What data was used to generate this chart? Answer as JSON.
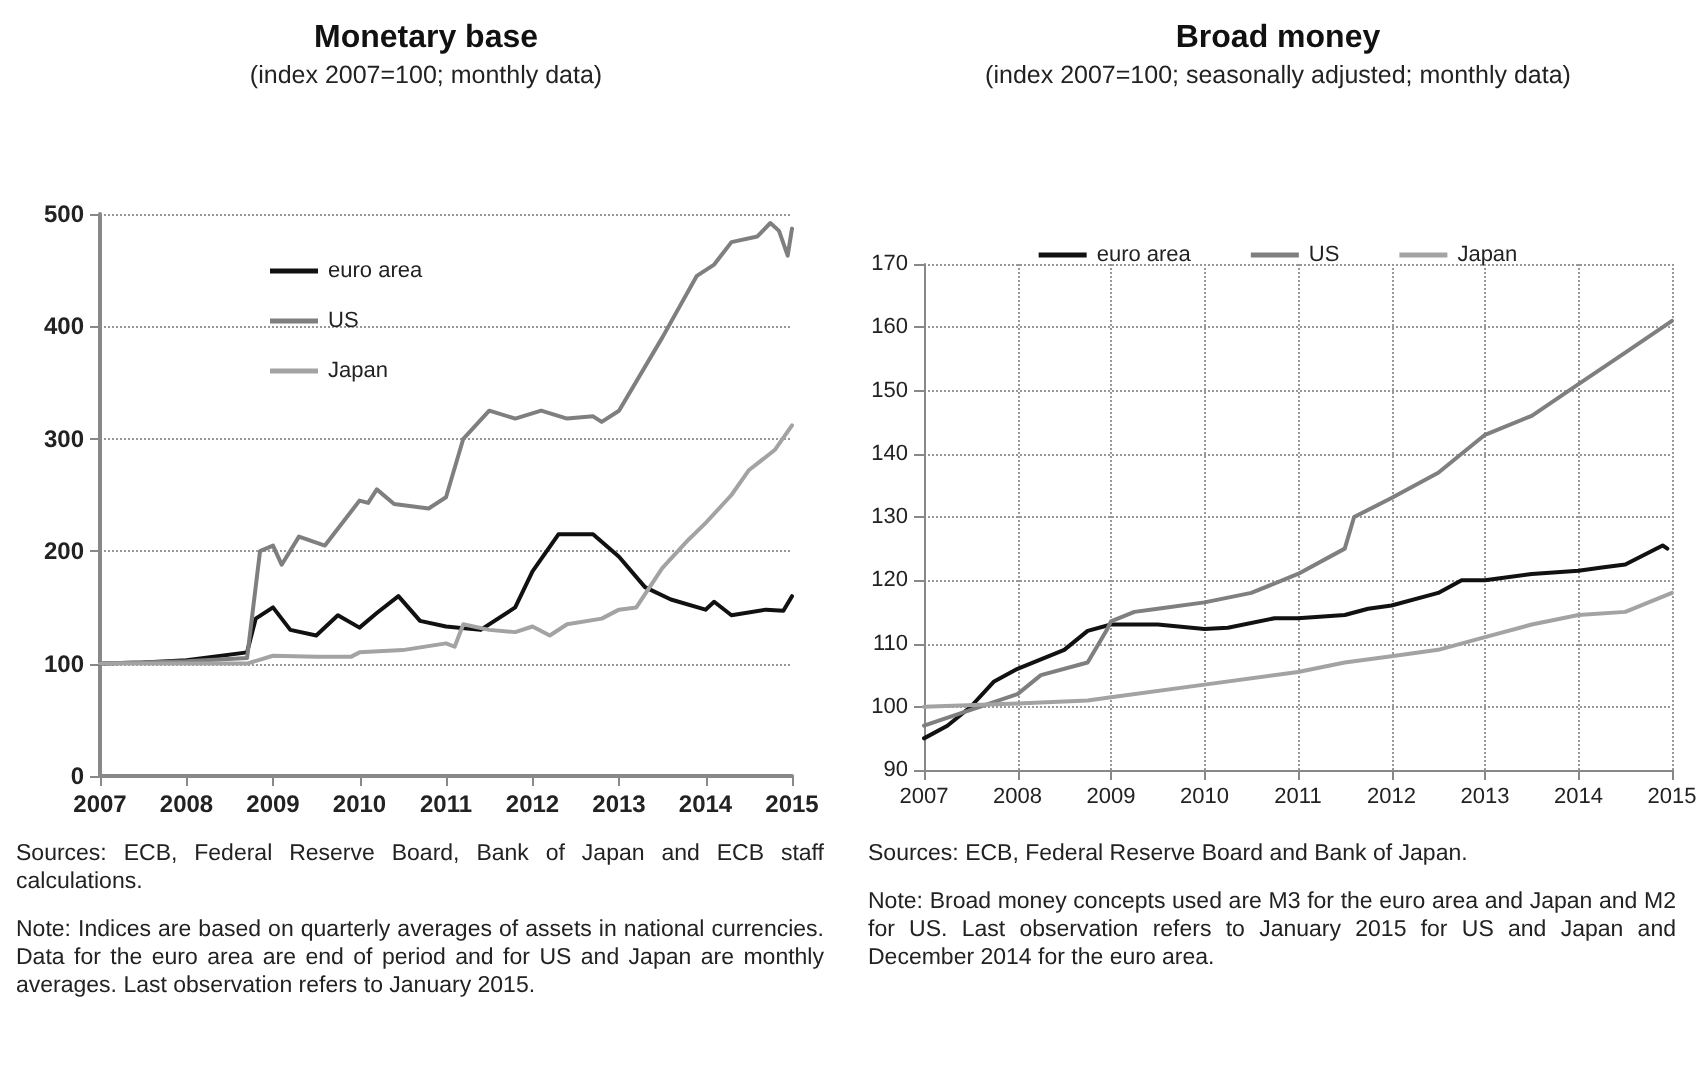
{
  "chart_data": [
    {
      "type": "line",
      "title": "Monetary base",
      "subtitle": "(index 2007=100; monthly data)",
      "xlim": [
        2007,
        2015
      ],
      "xticks": [
        2007,
        2008,
        2009,
        2010,
        2011,
        2012,
        2013,
        2014,
        2015
      ],
      "ylim": [
        0,
        500
      ],
      "yticks": [
        0,
        100,
        200,
        300,
        400,
        500
      ],
      "grid": "y",
      "legend": "top left",
      "marker": "none",
      "line_style": "solid",
      "series": [
        {
          "name": "euro area",
          "color": "#111111",
          "x": [
            2007,
            2007.5,
            2008,
            2008.7,
            2008.8,
            2009,
            2009.2,
            2009.5,
            2009.75,
            2010,
            2010.2,
            2010.45,
            2010.7,
            2011,
            2011.4,
            2011.8,
            2012,
            2012.3,
            2012.7,
            2013,
            2013.3,
            2013.6,
            2014,
            2014.1,
            2014.3,
            2014.7,
            2014.9,
            2015
          ],
          "values": [
            100,
            101,
            103,
            110,
            140,
            150,
            130,
            125,
            143,
            132,
            145,
            160,
            138,
            133,
            130,
            150,
            182,
            215,
            215,
            195,
            168,
            157,
            148,
            155,
            143,
            148,
            147,
            160
          ]
        },
        {
          "name": "US",
          "color": "#7f7f7f",
          "x": [
            2007,
            2008,
            2008.7,
            2008.85,
            2009,
            2009.1,
            2009.3,
            2009.6,
            2010,
            2010.1,
            2010.2,
            2010.4,
            2010.8,
            2011,
            2011.2,
            2011.5,
            2011.8,
            2012.1,
            2012.4,
            2012.7,
            2012.8,
            2013,
            2013.5,
            2013.9,
            2014.1,
            2014.3,
            2014.6,
            2014.75,
            2014.85,
            2014.95,
            2015
          ],
          "values": [
            100,
            102,
            105,
            200,
            205,
            188,
            213,
            205,
            245,
            243,
            255,
            242,
            238,
            248,
            300,
            325,
            318,
            325,
            318,
            320,
            315,
            325,
            390,
            445,
            455,
            475,
            480,
            492,
            485,
            463,
            487
          ]
        },
        {
          "name": "Japan",
          "color": "#a3a3a3",
          "x": [
            2007,
            2008,
            2008.7,
            2009,
            2009.5,
            2009.9,
            2010,
            2010.5,
            2011,
            2011.1,
            2011.2,
            2011.5,
            2011.8,
            2012,
            2012.2,
            2012.4,
            2012.8,
            2013,
            2013.2,
            2013.5,
            2013.8,
            2014,
            2014.3,
            2014.5,
            2014.8,
            2015
          ],
          "values": [
            100,
            100,
            100,
            107,
            106,
            106,
            110,
            112,
            118,
            115,
            135,
            130,
            128,
            133,
            125,
            135,
            140,
            148,
            150,
            185,
            210,
            225,
            250,
            272,
            290,
            312
          ]
        }
      ],
      "annotations": [
        "Sources: ECB, Federal Reserve Board, Bank of Japan and ECB staff calculations.",
        "Note: Indices are based on quarterly averages of assets in national currencies. Data for the euro area are end of period and for US and Japan are monthly averages. Last observation refers to January 2015."
      ]
    },
    {
      "type": "line",
      "title": "Broad money",
      "subtitle": "(index 2007=100; seasonally adjusted; monthly data)",
      "xlim": [
        2007,
        2015
      ],
      "xticks": [
        2007,
        2008,
        2009,
        2010,
        2011,
        2012,
        2013,
        2014,
        2015
      ],
      "ylim": [
        90,
        170
      ],
      "yticks": [
        90,
        100,
        110,
        120,
        130,
        140,
        150,
        160,
        170
      ],
      "grid": true,
      "legend": "top",
      "marker": "none",
      "line_style": "solid",
      "series": [
        {
          "name": "euro area",
          "color": "#111111",
          "x": [
            2007,
            2007.25,
            2007.5,
            2007.75,
            2008,
            2008.5,
            2008.75,
            2009,
            2009.5,
            2010,
            2010.25,
            2010.75,
            2011,
            2011.5,
            2011.75,
            2012,
            2012.5,
            2012.75,
            2013,
            2013.5,
            2014,
            2014.25,
            2014.5,
            2014.9,
            2014.95
          ],
          "values": [
            95,
            97,
            100,
            104,
            106,
            109,
            112,
            113,
            113,
            112.3,
            112.5,
            114,
            114,
            114.5,
            115.5,
            116,
            118,
            120,
            120,
            121,
            121.5,
            122,
            122.5,
            125.5,
            125
          ]
        },
        {
          "name": "US",
          "color": "#7f7f7f",
          "x": [
            2007,
            2007.5,
            2008,
            2008.25,
            2008.75,
            2008.95,
            2009,
            2009.25,
            2009.5,
            2010,
            2010.5,
            2011,
            2011.5,
            2011.6,
            2012,
            2012.5,
            2013,
            2013.5,
            2014,
            2014.5,
            2015
          ],
          "values": [
            97,
            99.5,
            102,
            105,
            107,
            112,
            113.5,
            115,
            115.5,
            116.5,
            118,
            121,
            125,
            130,
            133,
            137,
            143,
            146,
            151,
            156,
            161
          ]
        },
        {
          "name": "Japan",
          "color": "#a3a3a3",
          "x": [
            2007,
            2008,
            2008.75,
            2009,
            2010,
            2011,
            2011.5,
            2012,
            2012.5,
            2013,
            2013.5,
            2014,
            2014.5,
            2015
          ],
          "values": [
            100,
            100.5,
            101,
            101.5,
            103.5,
            105.5,
            107,
            108,
            109,
            111,
            113,
            114.5,
            115,
            118
          ]
        }
      ],
      "annotations": [
        "Sources: ECB, Federal Reserve Board and Bank of Japan.",
        "Note: Broad money concepts used are M3 for the euro area and Japan and M2 for US. Last observation refers to January 2015 for US and Japan and December 2014 for the euro area."
      ]
    }
  ]
}
